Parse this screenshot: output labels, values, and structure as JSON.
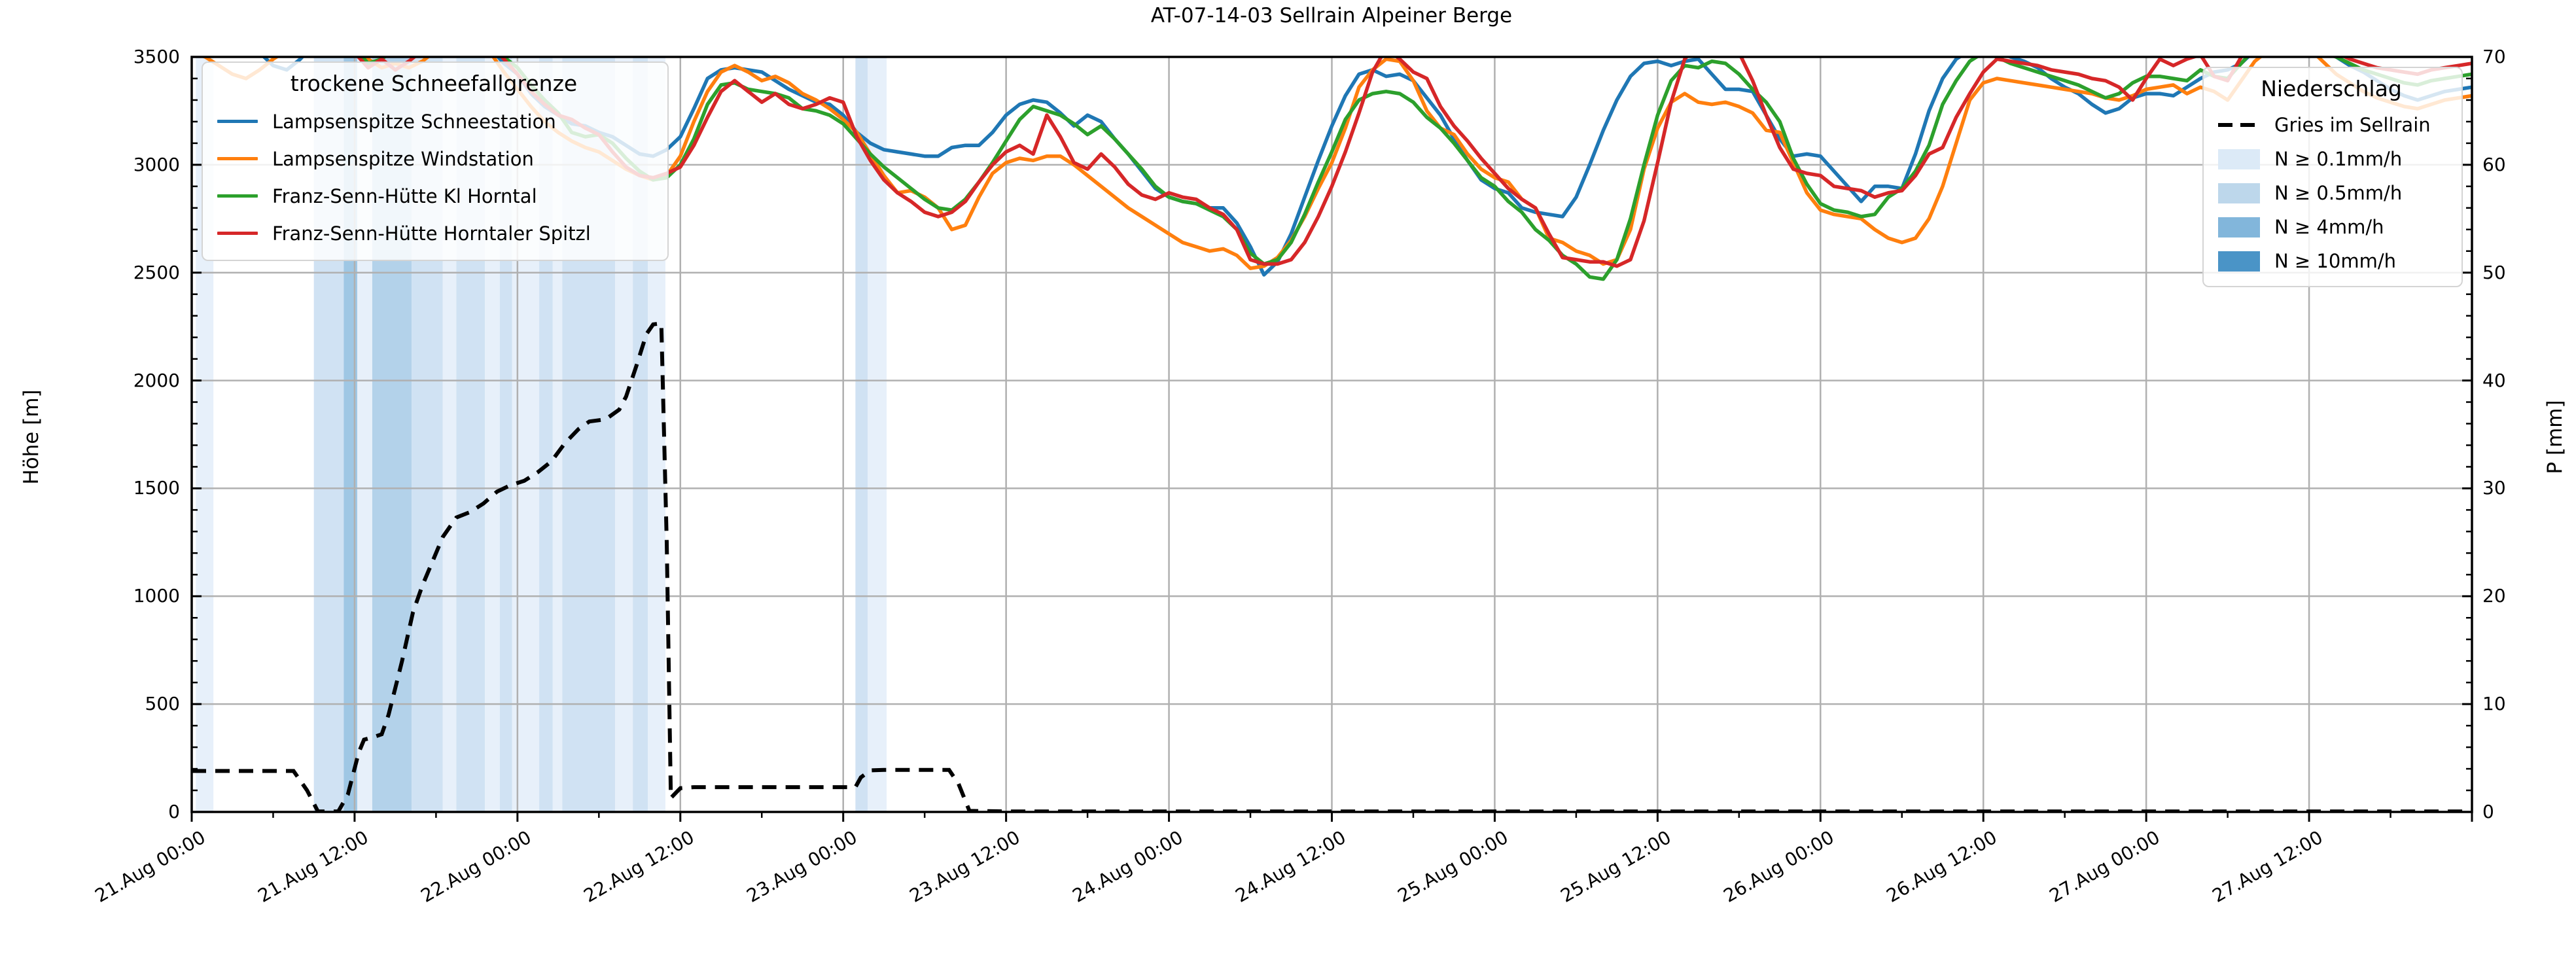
{
  "title": "AT-07-14-03 Sellrain Alpeiner Berge",
  "y_left": {
    "label": "Höhe [m]",
    "min": 0,
    "max": 3500,
    "tick_step": 500,
    "minor_step": 100,
    "ticks": [
      "0",
      "500",
      "1000",
      "1500",
      "2000",
      "2500",
      "3000",
      "3500"
    ]
  },
  "y_right": {
    "label": "P [mm]",
    "min": 0,
    "max": 70,
    "tick_step": 10,
    "minor_step": 2,
    "ticks": [
      "0",
      "10",
      "20",
      "30",
      "40",
      "50",
      "60",
      "70"
    ]
  },
  "x_axis": {
    "range_hours": [
      0,
      168
    ],
    "major_step_hours": 12,
    "minor_step_hours": 6,
    "tick_labels": [
      "21.Aug 00:00",
      "21.Aug 12:00",
      "22.Aug 00:00",
      "22.Aug 12:00",
      "23.Aug 00:00",
      "23.Aug 12:00",
      "24.Aug 00:00",
      "24.Aug 12:00",
      "25.Aug 00:00",
      "25.Aug 12:00",
      "26.Aug 00:00",
      "26.Aug 12:00",
      "27.Aug 00:00",
      "27.Aug 12:00"
    ]
  },
  "legend_snowline": {
    "title": "trockene Schneefallgrenze",
    "items": [
      {
        "label": "Lampsenspitze Schneestation",
        "color": "#1f77b4"
      },
      {
        "label": "Lampsenspitze Windstation",
        "color": "#ff7f0e"
      },
      {
        "label": "Franz-Senn-Hütte Kl Horntal",
        "color": "#2ca02c"
      },
      {
        "label": "Franz-Senn-Hütte Horntaler Spitzl",
        "color": "#d62728"
      }
    ]
  },
  "legend_precip": {
    "title": "Niederschlag",
    "line_item": {
      "label": "Gries im Sellrain",
      "color": "#000000"
    },
    "levels": [
      {
        "label": "N ≥ 0.1mm/h",
        "color": "#dceaf7"
      },
      {
        "label": "N ≥ 0.5mm/h",
        "color": "#bdd7eb"
      },
      {
        "label": "N ≥ 4mm/h",
        "color": "#82b6db"
      },
      {
        "label": "N ≥ 10mm/h",
        "color": "#4a94c7"
      }
    ]
  },
  "chart_data": {
    "type": "line",
    "title": "AT-07-14-03 Sellrain Alpeiner Berge",
    "x_unit": "hours since 21.Aug 00:00",
    "x_range": [
      0,
      168
    ],
    "grid": true,
    "y_left": {
      "label": "Höhe [m]",
      "range": [
        0,
        3500
      ]
    },
    "y_right": {
      "label": "P [mm]",
      "range": [
        0,
        70
      ]
    },
    "series": [
      {
        "name": "Lampsenspitze Schneestation",
        "color": "#1f77b4",
        "axis": "left",
        "unit": "m",
        "start_hour": 0,
        "step_hours": 1,
        "values": [
          3560,
          3560,
          3560,
          3560,
          3560,
          3520,
          3460,
          3440,
          3490,
          3560,
          3560,
          3560,
          3560,
          3560,
          3560,
          3560,
          3560,
          3560,
          3560,
          3560,
          3560,
          3560,
          3540,
          3470,
          3420,
          3330,
          3270,
          3230,
          3190,
          3180,
          3150,
          3130,
          3090,
          3050,
          3040,
          3070,
          3130,
          3260,
          3400,
          3440,
          3450,
          3440,
          3430,
          3390,
          3350,
          3320,
          3290,
          3280,
          3230,
          3150,
          3100,
          3070,
          3060,
          3050,
          3040,
          3040,
          3080,
          3090,
          3090,
          3150,
          3230,
          3280,
          3300,
          3290,
          3240,
          3180,
          3230,
          3200,
          3120,
          3050,
          2970,
          2890,
          2850,
          2830,
          2820,
          2800,
          2800,
          2730,
          2620,
          2490,
          2550,
          2680,
          2850,
          3020,
          3180,
          3320,
          3420,
          3440,
          3410,
          3420,
          3390,
          3310,
          3230,
          3120,
          3020,
          2930,
          2890,
          2870,
          2800,
          2780,
          2770,
          2760,
          2850,
          3000,
          3160,
          3300,
          3410,
          3470,
          3480,
          3460,
          3480,
          3490,
          3420,
          3350,
          3350,
          3340,
          3230,
          3120,
          3040,
          3050,
          3040,
          2970,
          2900,
          2830,
          2900,
          2900,
          2890,
          3050,
          3250,
          3400,
          3490,
          3530,
          3530,
          3530,
          3500,
          3480,
          3450,
          3400,
          3360,
          3330,
          3280,
          3240,
          3260,
          3310,
          3330,
          3330,
          3320,
          3360,
          3400,
          3430,
          3440,
          3470,
          3530,
          3550,
          3550,
          3550,
          3550,
          3540,
          3500,
          3460,
          3430,
          3390,
          3350,
          3320,
          3300,
          3320,
          3340,
          3350,
          3360
        ]
      },
      {
        "name": "Lampsenspitze Windstation",
        "color": "#ff7f0e",
        "axis": "left",
        "unit": "m",
        "start_hour": 0,
        "step_hours": 1,
        "values": [
          3520,
          3500,
          3460,
          3420,
          3400,
          3440,
          3490,
          3530,
          3560,
          3560,
          3560,
          3560,
          3560,
          3490,
          3450,
          3470,
          3450,
          3480,
          3530,
          3560,
          3560,
          3560,
          3520,
          3430,
          3350,
          3270,
          3200,
          3150,
          3110,
          3080,
          3060,
          3020,
          2980,
          2950,
          2930,
          2950,
          3040,
          3200,
          3340,
          3430,
          3460,
          3430,
          3390,
          3410,
          3380,
          3330,
          3300,
          3260,
          3210,
          3150,
          3050,
          2950,
          2870,
          2880,
          2850,
          2800,
          2700,
          2720,
          2850,
          2960,
          3010,
          3030,
          3020,
          3040,
          3040,
          3000,
          2950,
          2900,
          2850,
          2800,
          2760,
          2720,
          2680,
          2640,
          2620,
          2600,
          2610,
          2580,
          2520,
          2530,
          2570,
          2650,
          2760,
          2890,
          3010,
          3170,
          3360,
          3440,
          3490,
          3480,
          3390,
          3250,
          3170,
          3140,
          3050,
          2980,
          2940,
          2920,
          2840,
          2800,
          2660,
          2640,
          2600,
          2580,
          2540,
          2560,
          2700,
          2980,
          3170,
          3290,
          3330,
          3290,
          3280,
          3290,
          3270,
          3240,
          3160,
          3150,
          3010,
          2870,
          2790,
          2770,
          2760,
          2750,
          2700,
          2660,
          2640,
          2660,
          2750,
          2900,
          3100,
          3300,
          3380,
          3400,
          3390,
          3380,
          3370,
          3360,
          3350,
          3340,
          3330,
          3310,
          3300,
          3320,
          3350,
          3360,
          3370,
          3330,
          3360,
          3340,
          3300,
          3390,
          3480,
          3530,
          3550,
          3550,
          3540,
          3480,
          3420,
          3380,
          3340,
          3310,
          3290,
          3270,
          3260,
          3280,
          3300,
          3310,
          3320
        ]
      },
      {
        "name": "Franz-Senn-Hütte Kl Horntal",
        "color": "#2ca02c",
        "axis": "left",
        "unit": "m",
        "start_hour": 0,
        "step_hours": 1,
        "values": [
          3540,
          3560,
          3560,
          3560,
          3530,
          3560,
          3560,
          3560,
          3560,
          3560,
          3560,
          3560,
          3540,
          3470,
          3490,
          3540,
          3560,
          3560,
          3560,
          3560,
          3560,
          3560,
          3560,
          3500,
          3450,
          3370,
          3300,
          3240,
          3150,
          3130,
          3140,
          3100,
          3030,
          2970,
          2930,
          2940,
          3000,
          3120,
          3280,
          3370,
          3380,
          3350,
          3340,
          3330,
          3310,
          3260,
          3250,
          3230,
          3190,
          3120,
          3050,
          2990,
          2940,
          2890,
          2840,
          2800,
          2790,
          2840,
          2920,
          3010,
          3110,
          3210,
          3270,
          3250,
          3230,
          3190,
          3140,
          3180,
          3120,
          3050,
          2980,
          2900,
          2850,
          2830,
          2820,
          2790,
          2760,
          2700,
          2590,
          2540,
          2560,
          2640,
          2770,
          2920,
          3060,
          3210,
          3300,
          3330,
          3340,
          3330,
          3290,
          3220,
          3170,
          3100,
          3020,
          2940,
          2900,
          2830,
          2780,
          2700,
          2650,
          2580,
          2540,
          2480,
          2470,
          2560,
          2750,
          3000,
          3230,
          3390,
          3460,
          3450,
          3480,
          3470,
          3420,
          3350,
          3290,
          3200,
          3030,
          2910,
          2820,
          2790,
          2780,
          2760,
          2770,
          2850,
          2890,
          2970,
          3090,
          3280,
          3390,
          3480,
          3520,
          3500,
          3470,
          3450,
          3430,
          3410,
          3390,
          3370,
          3340,
          3310,
          3330,
          3380,
          3410,
          3410,
          3400,
          3390,
          3440,
          3410,
          3400,
          3470,
          3540,
          3550,
          3550,
          3550,
          3540,
          3520,
          3500,
          3470,
          3440,
          3420,
          3400,
          3380,
          3370,
          3390,
          3400,
          3410,
          3420
        ]
      },
      {
        "name": "Franz-Senn-Hütte Horntaler Spitzl",
        "color": "#d62728",
        "axis": "left",
        "unit": "m",
        "start_hour": 0,
        "step_hours": 1,
        "values": [
          3560,
          3560,
          3560,
          3560,
          3560,
          3560,
          3560,
          3560,
          3560,
          3560,
          3560,
          3560,
          3520,
          3450,
          3490,
          3440,
          3480,
          3530,
          3560,
          3560,
          3560,
          3560,
          3560,
          3490,
          3420,
          3340,
          3280,
          3230,
          3210,
          3170,
          3140,
          3060,
          2990,
          2950,
          2940,
          2960,
          2990,
          3090,
          3220,
          3340,
          3390,
          3340,
          3290,
          3330,
          3280,
          3260,
          3280,
          3310,
          3290,
          3130,
          3020,
          2930,
          2870,
          2830,
          2780,
          2760,
          2780,
          2830,
          2920,
          3000,
          3060,
          3090,
          3050,
          3230,
          3130,
          3010,
          2980,
          3050,
          2990,
          2910,
          2860,
          2840,
          2870,
          2850,
          2840,
          2800,
          2770,
          2700,
          2560,
          2540,
          2540,
          2560,
          2640,
          2760,
          2900,
          3060,
          3240,
          3430,
          3540,
          3490,
          3430,
          3400,
          3270,
          3180,
          3110,
          3030,
          2960,
          2890,
          2840,
          2800,
          2680,
          2570,
          2560,
          2550,
          2550,
          2530,
          2560,
          2740,
          3010,
          3290,
          3490,
          3560,
          3570,
          3570,
          3520,
          3390,
          3230,
          3080,
          2980,
          2960,
          2950,
          2900,
          2890,
          2880,
          2850,
          2870,
          2880,
          2950,
          3050,
          3080,
          3220,
          3330,
          3430,
          3490,
          3480,
          3470,
          3460,
          3440,
          3430,
          3420,
          3400,
          3390,
          3360,
          3300,
          3400,
          3490,
          3460,
          3490,
          3510,
          3410,
          3390,
          3500,
          3550,
          3560,
          3560,
          3560,
          3550,
          3540,
          3520,
          3490,
          3470,
          3450,
          3440,
          3430,
          3420,
          3440,
          3450,
          3460,
          3470
        ]
      }
    ],
    "precipitation_line": {
      "name": "Gries im Sellrain",
      "color": "#000000",
      "style": "dashed",
      "axis": "right",
      "unit": "mm",
      "points": [
        [
          0,
          3.8
        ],
        [
          7.5,
          3.8
        ],
        [
          8.5,
          2.0
        ],
        [
          9.3,
          0.05
        ],
        [
          10.8,
          0.05
        ],
        [
          11.5,
          1.6
        ],
        [
          12.3,
          5.5
        ],
        [
          12.7,
          6.7
        ],
        [
          13.3,
          6.9
        ],
        [
          14,
          7.2
        ],
        [
          14.5,
          9
        ],
        [
          15,
          11.5
        ],
        [
          15.5,
          14
        ],
        [
          16.3,
          18.5
        ],
        [
          17,
          21
        ],
        [
          17.5,
          22.5
        ],
        [
          18.5,
          25.5
        ],
        [
          19.5,
          27.3
        ],
        [
          20.5,
          27.8
        ],
        [
          21.5,
          28.6
        ],
        [
          22.5,
          29.7
        ],
        [
          23.5,
          30.3
        ],
        [
          24.5,
          30.7
        ],
        [
          25.5,
          31.5
        ],
        [
          26.5,
          32.5
        ],
        [
          27.5,
          34.2
        ],
        [
          28.5,
          35.5
        ],
        [
          29.3,
          36.2
        ],
        [
          30.5,
          36.4
        ],
        [
          31.5,
          37.3
        ],
        [
          32,
          38.5
        ],
        [
          32.8,
          41.5
        ],
        [
          33.5,
          44.3
        ],
        [
          34,
          45.2
        ],
        [
          34.6,
          45.3
        ],
        [
          35,
          25
        ],
        [
          35.3,
          1.3
        ],
        [
          36,
          2.2
        ],
        [
          37,
          2.3
        ],
        [
          48.9,
          2.3
        ],
        [
          49.3,
          3.2
        ],
        [
          50,
          3.85
        ],
        [
          51,
          3.9
        ],
        [
          55.8,
          3.9
        ],
        [
          56.5,
          2.6
        ],
        [
          57.3,
          0.1
        ],
        [
          60,
          0.05
        ],
        [
          168,
          0.05
        ]
      ]
    },
    "precipitation_bands": {
      "levels": [
        {
          "label": "N ≥ 0.1mm/h",
          "legend_color": "#dceaf7",
          "band_color": "#e7f0fa"
        },
        {
          "label": "N ≥ 0.5mm/h",
          "legend_color": "#bdd7eb",
          "band_color": "#d0e2f3"
        },
        {
          "label": "N ≥ 4mm/h",
          "legend_color": "#82b6db",
          "band_color": "#b3d2ea"
        },
        {
          "label": "N ≥ 10mm/h",
          "legend_color": "#4a94c7",
          "band_color": "#9fc7e4"
        }
      ],
      "segments": [
        [
          0.3,
          1.6,
          1
        ],
        [
          9.0,
          11.2,
          2
        ],
        [
          11.2,
          12.2,
          4
        ],
        [
          12.2,
          13.3,
          1
        ],
        [
          13.3,
          16.2,
          3
        ],
        [
          16.2,
          18.5,
          2
        ],
        [
          18.5,
          19.5,
          1
        ],
        [
          19.5,
          21.6,
          2
        ],
        [
          21.6,
          22.7,
          1
        ],
        [
          22.7,
          23.6,
          2
        ],
        [
          23.6,
          25.6,
          1
        ],
        [
          25.6,
          26.6,
          2
        ],
        [
          26.6,
          27.3,
          1
        ],
        [
          27.3,
          31.2,
          2
        ],
        [
          31.2,
          32.5,
          1
        ],
        [
          32.5,
          33.6,
          2
        ],
        [
          33.6,
          34.9,
          1
        ],
        [
          48.9,
          49.8,
          2
        ],
        [
          49.8,
          51.2,
          1
        ]
      ]
    },
    "colors": {
      "grid": "#b0b0b0",
      "spine": "#000000",
      "background": "#ffffff"
    }
  }
}
